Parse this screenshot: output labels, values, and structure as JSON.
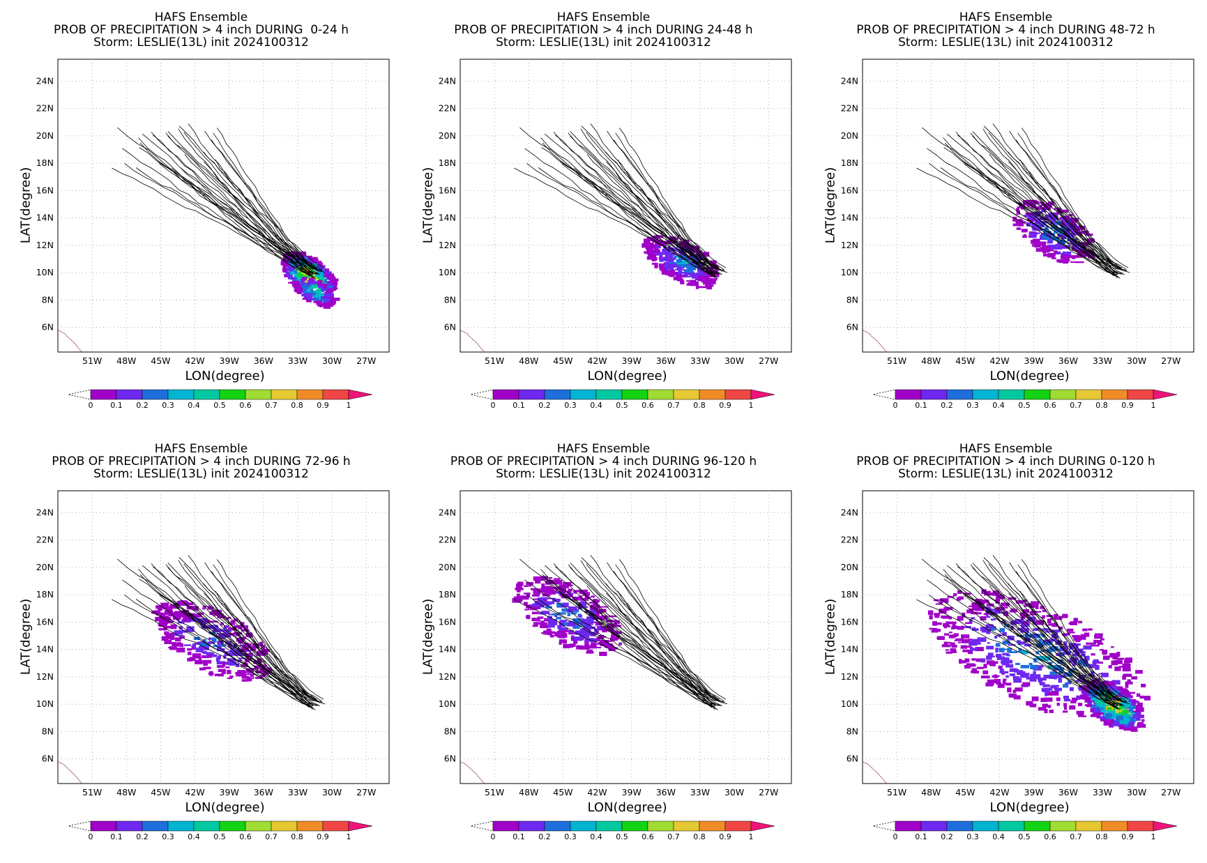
{
  "colorbar": {
    "tick_labels": [
      "0",
      "0.1",
      "0.2",
      "0.3",
      "0.4",
      "0.5",
      "0.6",
      "0.7",
      "0.8",
      "0.9",
      "1"
    ],
    "colors": [
      "#a000c8",
      "#6e28f0",
      "#1e6edc",
      "#00b4d2",
      "#00c8a0",
      "#14d214",
      "#a0dc32",
      "#e6c832",
      "#f08c28",
      "#f04646"
    ],
    "over_color": "#f0147a"
  },
  "axes": {
    "xlabel": "LON(degree)",
    "ylabel": "LAT(degree)",
    "lon_ticks": [
      "51W",
      "48W",
      "45W",
      "42W",
      "39W",
      "36W",
      "33W",
      "30W",
      "27W"
    ],
    "lat_ticks": [
      "24N",
      "22N",
      "20N",
      "18N",
      "16N",
      "14N",
      "12N",
      "10N",
      "8N",
      "6N"
    ]
  },
  "panels": [
    {
      "line1": "HAFS Ensemble",
      "line2": "PROB OF PRECIPITATION > 4 inch DURING  0-24 h",
      "line3": "Storm: LESLIE(13L) init 2024100312"
    },
    {
      "line1": "HAFS Ensemble",
      "line2": "PROB OF PRECIPITATION > 4 inch DURING 24-48 h",
      "line3": "Storm: LESLIE(13L) init 2024100312"
    },
    {
      "line1": "HAFS Ensemble",
      "line2": "PROB OF PRECIPITATION > 4 inch DURING 48-72 h",
      "line3": "Storm: LESLIE(13L) init 2024100312"
    },
    {
      "line1": "HAFS Ensemble",
      "line2": "PROB OF PRECIPITATION > 4 inch DURING 72-96 h",
      "line3": "Storm: LESLIE(13L) init 2024100312"
    },
    {
      "line1": "HAFS Ensemble",
      "line2": "PROB OF PRECIPITATION > 4 inch DURING 96-120 h",
      "line3": "Storm: LESLIE(13L) init 2024100312"
    },
    {
      "line1": "HAFS Ensemble",
      "line2": "PROB OF PRECIPITATION > 4 inch DURING 0-120 h",
      "line3": "Storm: LESLIE(13L) init 2024100312"
    }
  ]
}
